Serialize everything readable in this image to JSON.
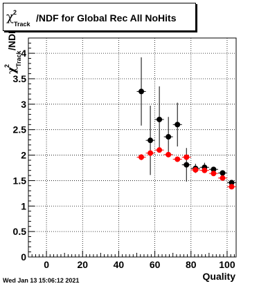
{
  "title": {
    "symbol": "χ",
    "superscript": "2",
    "subscript": "Track",
    "text": "/NDF for Global Rec All NoHits"
  },
  "footer_timestamp": "Wed Jan 13 15:06:12 2021",
  "chart_data": {
    "type": "scatter",
    "xlabel": "Quality",
    "ylabel_symbol": "χ",
    "ylabel_sup": "2",
    "ylabel_sub": "Track",
    "ylabel_suffix": "/NDF",
    "xlim": [
      -10,
      105
    ],
    "ylim": [
      0,
      4.3
    ],
    "xticks": [
      0,
      20,
      40,
      60,
      80,
      100
    ],
    "yticks": [
      0,
      0.5,
      1,
      1.5,
      2,
      2.5,
      3,
      3.5,
      4
    ],
    "grid": true,
    "series": [
      {
        "color": "#000000",
        "points": [
          {
            "x": 52.5,
            "y": 3.25,
            "err": 0.67
          },
          {
            "x": 57.5,
            "y": 2.29,
            "err": 0.68
          },
          {
            "x": 62.5,
            "y": 2.7,
            "err": 0.65
          },
          {
            "x": 67.5,
            "y": 2.36,
            "err": 0.39
          },
          {
            "x": 72.5,
            "y": 2.6,
            "err": 0.43
          },
          {
            "x": 77.5,
            "y": 1.81,
            "err": 0.33
          },
          {
            "x": 82.5,
            "y": 1.74,
            "err": 0.09
          },
          {
            "x": 87.5,
            "y": 1.76,
            "err": 0.09
          },
          {
            "x": 92.5,
            "y": 1.72,
            "err": 0.05
          },
          {
            "x": 97.5,
            "y": 1.65,
            "err": 0.05
          },
          {
            "x": 102.5,
            "y": 1.46,
            "err": 0.04
          }
        ]
      },
      {
        "color": "#ff0000",
        "points": [
          {
            "x": 52.5,
            "y": 1.96,
            "err": 0.06
          },
          {
            "x": 57.5,
            "y": 2.04,
            "err": 0.06
          },
          {
            "x": 62.5,
            "y": 2.1,
            "err": 0.05
          },
          {
            "x": 67.5,
            "y": 2.01,
            "err": 0.05
          },
          {
            "x": 72.5,
            "y": 1.92,
            "err": 0.04
          },
          {
            "x": 77.5,
            "y": 1.96,
            "err": 0.04
          },
          {
            "x": 82.5,
            "y": 1.71,
            "err": 0.04
          },
          {
            "x": 87.5,
            "y": 1.7,
            "err": 0.04
          },
          {
            "x": 92.5,
            "y": 1.64,
            "err": 0.03
          },
          {
            "x": 97.5,
            "y": 1.55,
            "err": 0.03
          },
          {
            "x": 102.5,
            "y": 1.38,
            "err": 0.03
          }
        ]
      }
    ]
  }
}
